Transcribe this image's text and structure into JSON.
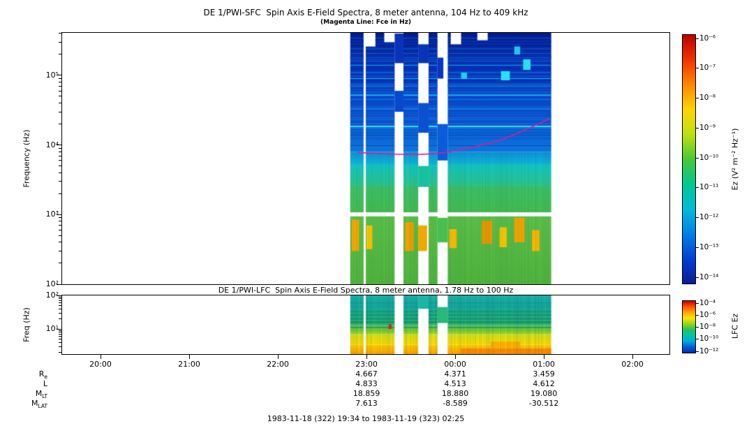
{
  "caption": "1983-11-18 (322) 19:34 to 1983-11-19 (323) 02:25",
  "xaxis": {
    "ticks": [
      {
        "t": 26,
        "label": "20:00"
      },
      {
        "t": 86,
        "label": "21:00"
      },
      {
        "t": 146,
        "label": "22:00"
      },
      {
        "t": 206,
        "label": "23:00"
      },
      {
        "t": 266,
        "label": "00:00"
      },
      {
        "t": 326,
        "label": "01:00"
      },
      {
        "t": 386,
        "label": "02:00"
      }
    ]
  },
  "ephemeris": {
    "column_times_min": [
      206,
      266,
      326
    ],
    "rows": [
      {
        "label": "R",
        "sub": "e",
        "values": [
          "4.667",
          "4.371",
          "3.459"
        ]
      },
      {
        "label": "L",
        "sub": "",
        "values": [
          "4.833",
          "4.513",
          "4.612"
        ]
      },
      {
        "label": "M",
        "sub": "LT",
        "values": [
          "18.859",
          "18.880",
          "19.080"
        ]
      },
      {
        "label": "M",
        "sub": "LAT",
        "values": [
          "7.613",
          "-8.589",
          "-30.512"
        ]
      }
    ]
  },
  "chart_data": [
    {
      "type": "heatmap",
      "title": "DE 1/PWI-SFC  Spin Axis E-Field Spectra, 8 meter antenna, 104 Hz to 409 kHz",
      "subtitle": "(Magenta Line: Fce in Hz)",
      "ylabel": "Frequency (Hz)",
      "ylim_hz": [
        100,
        409000
      ],
      "yticks": [
        {
          "log": 5,
          "label": "10⁵"
        },
        {
          "log": 4,
          "label": "10⁴"
        },
        {
          "log": 3,
          "label": "10³"
        },
        {
          "log": 2,
          "label": "10²"
        }
      ],
      "time_range_min": [
        0,
        411
      ],
      "data_segments_min": [
        [
          195,
          204
        ],
        [
          205.5,
          225
        ],
        [
          231,
          241
        ],
        [
          248,
          254
        ],
        [
          261,
          331
        ]
      ],
      "freq_bands": [
        {
          "f": [
            100,
            950
          ],
          "colors": [
            "#52b43c",
            "#5cc04a"
          ]
        },
        {
          "f": [
            1080,
            2600
          ],
          "colors": [
            "#46bc50",
            "#3cc06a"
          ]
        },
        {
          "f": [
            2600,
            5200
          ],
          "colors": [
            "#2cc48c",
            "#12c6c2"
          ]
        },
        {
          "f": [
            5200,
            8000
          ],
          "colors": [
            "#10b8d8",
            "#0c90dc"
          ]
        },
        {
          "f": [
            8000,
            20000
          ],
          "colors": [
            "#0c74dc",
            "#0a5cd4"
          ]
        },
        {
          "f": [
            20000,
            52000
          ],
          "colors": [
            "#0a54d0",
            "#0846c8"
          ]
        },
        {
          "f": [
            52000,
            200000
          ],
          "colors": [
            "#0642c4",
            "#042eb2"
          ]
        },
        {
          "f": [
            200000,
            409000
          ],
          "colors": [
            "#042aa8",
            "#021c8e"
          ]
        }
      ],
      "h_texture": {
        "seed": 7,
        "count": 70,
        "f": [
          9000,
          400000
        ],
        "colors": [
          "#1e8ae8",
          "#04249c"
        ]
      },
      "stripes": [
        {
          "f": 18500,
          "color": "#2ee4ea",
          "w": 2
        },
        {
          "f": 25000,
          "color": "#1476e8",
          "w": 1
        },
        {
          "f": 33000,
          "color": "#18a0ec",
          "w": 1
        },
        {
          "f": 52000,
          "color": "#14b4ec",
          "w": 2
        },
        {
          "f": 70000,
          "color": "#0e66d8",
          "w": 2
        },
        {
          "f": 90000,
          "color": "#18c0f0",
          "w": 1
        },
        {
          "f": 110000,
          "color": "#0e5cd0",
          "w": 2
        },
        {
          "f": 140000,
          "color": "#14a0e8",
          "w": 1
        },
        {
          "f": 180000,
          "color": "#0c48c4",
          "w": 2
        },
        {
          "f": 240000,
          "color": "#1060d0",
          "w": 1
        },
        {
          "f": 310000,
          "color": "#0c3cb8",
          "w": 1
        }
      ],
      "patches": [
        {
          "t": [
            196,
            201
          ],
          "f": [
            300,
            850
          ],
          "color": "#f4a800"
        },
        {
          "t": [
            206,
            210
          ],
          "f": [
            320,
            700
          ],
          "color": "#ffc400"
        },
        {
          "t": [
            232,
            238
          ],
          "f": [
            300,
            780
          ],
          "color": "#f0a000"
        },
        {
          "t": [
            241,
            247
          ],
          "f": [
            300,
            700
          ],
          "color": "#f0a800"
        },
        {
          "t": [
            262,
            267
          ],
          "f": [
            330,
            620
          ],
          "color": "#ffbc00"
        },
        {
          "t": [
            284,
            291
          ],
          "f": [
            380,
            820
          ],
          "color": "#ec9800"
        },
        {
          "t": [
            296,
            301
          ],
          "f": [
            340,
            660
          ],
          "color": "#ffc800"
        },
        {
          "t": [
            306,
            313
          ],
          "f": [
            400,
            900
          ],
          "color": "#f2a400"
        },
        {
          "t": [
            318,
            323
          ],
          "f": [
            300,
            600
          ],
          "color": "#ffb400"
        },
        {
          "t": [
            297,
            303
          ],
          "f": [
            85000,
            115000
          ],
          "color": "#28e0f0"
        },
        {
          "t": [
            312,
            317
          ],
          "f": [
            120000,
            170000
          ],
          "color": "#28e0f0"
        },
        {
          "t": [
            306,
            310
          ],
          "f": [
            200000,
            260000
          ],
          "color": "#20c8f0"
        },
        {
          "t": [
            270,
            274
          ],
          "f": [
            90000,
            110000
          ],
          "color": "#20d0f0"
        }
      ],
      "gap_blocks": [
        {
          "t": [
            225,
            231
          ],
          "f": [
            150000,
            400000
          ],
          "color": "#0834b8"
        },
        {
          "t": [
            225,
            231
          ],
          "f": [
            30000,
            60000
          ],
          "color": "#0848cc"
        },
        {
          "t": [
            241,
            248
          ],
          "f": [
            150000,
            280000
          ],
          "color": "#0834b8"
        },
        {
          "t": [
            241,
            248
          ],
          "f": [
            15000,
            40000
          ],
          "color": "#0a50d0"
        },
        {
          "t": [
            254,
            261
          ],
          "f": [
            6000,
            20000
          ],
          "color": "#0a5cd8"
        },
        {
          "t": [
            254,
            258
          ],
          "f": [
            90000,
            180000
          ],
          "color": "#0838c0"
        },
        {
          "t": [
            241,
            248
          ],
          "f": [
            2500,
            5000
          ],
          "color": "#18c0a0"
        },
        {
          "t": [
            254,
            261
          ],
          "f": [
            400,
            900
          ],
          "color": "#48c050"
        }
      ],
      "v_texture": {
        "seed": 3,
        "f": [
          100,
          8000
        ],
        "rgb": "0,90,60",
        "alpha": 0.16
      },
      "white_blocks": [
        {
          "t": [
            205.5,
            212
          ],
          "f": [
            260000,
            409000
          ]
        },
        {
          "t": [
            218,
            225
          ],
          "f": [
            300000,
            409000
          ]
        },
        {
          "t": [
            263,
            270
          ],
          "f": [
            280000,
            409000
          ]
        },
        {
          "t": [
            281,
            288
          ],
          "f": [
            320000,
            409000
          ]
        }
      ],
      "white_band_hz": [
        950,
        1080
      ],
      "fce_line": {
        "color": "#e0189c",
        "points": [
          [
            200,
            7800
          ],
          [
            210,
            7600
          ],
          [
            225,
            7400
          ],
          [
            240,
            7300
          ],
          [
            252,
            7500
          ],
          [
            262,
            8000
          ],
          [
            272,
            8800
          ],
          [
            282,
            9800
          ],
          [
            292,
            11000
          ],
          [
            302,
            13000
          ],
          [
            312,
            16000
          ],
          [
            322,
            20000
          ],
          [
            330,
            24000
          ]
        ]
      },
      "colorbar": {
        "label": "Ez (V² m⁻² Hz⁻¹)",
        "ticks": [
          "10⁻⁶",
          "10⁻⁷",
          "10⁻⁸",
          "10⁻⁹",
          "10⁻¹⁰",
          "10⁻¹¹",
          "10⁻¹²",
          "10⁻¹³",
          "10⁻¹⁴"
        ],
        "stops": [
          "#bc0000",
          "#f03400",
          "#ff8800",
          "#ffd400",
          "#c0e010",
          "#48c838",
          "#00c890",
          "#00bcd8",
          "#0080e8",
          "#0040d4",
          "#0c1c98"
        ]
      }
    },
    {
      "type": "heatmap",
      "title": "DE 1/PWI-LFC  Spin Axis E-Field Spectra, 8 meter antenna, 1.78 Hz to 100 Hz",
      "ylabel": "Freq (Hz)",
      "ylim_hz": [
        1.78,
        100
      ],
      "yticks": [
        {
          "log": 2,
          "label": "10²"
        },
        {
          "log": 1,
          "label": "10¹"
        }
      ],
      "time_range_min": [
        0,
        411
      ],
      "data_segments_min": [
        [
          195,
          204
        ],
        [
          205.5,
          225
        ],
        [
          231,
          241
        ],
        [
          248,
          254
        ],
        [
          261,
          331
        ]
      ],
      "freq_bands": [
        {
          "f": [
            1.78,
            3.4
          ],
          "colors": [
            "#ffa400",
            "#ffd400"
          ]
        },
        {
          "f": [
            3.4,
            7
          ],
          "colors": [
            "#ffdc00",
            "#d4e414"
          ]
        },
        {
          "f": [
            7,
            13
          ],
          "colors": [
            "#a4d820",
            "#48c458"
          ]
        },
        {
          "f": [
            13,
            40
          ],
          "colors": [
            "#28b468",
            "#18ac8c"
          ]
        },
        {
          "f": [
            40,
            100
          ],
          "colors": [
            "#12a898",
            "#1cb4a4"
          ]
        }
      ],
      "stripes": [
        {
          "f": 9,
          "color": "#70c828",
          "w": 1
        },
        {
          "f": 11,
          "color": "#128060",
          "w": 1
        },
        {
          "f": 16,
          "color": "#0c7868",
          "w": 1
        },
        {
          "f": 20,
          "color": "#0a8078",
          "w": 1
        },
        {
          "f": 26,
          "color": "#0c8880",
          "w": 1
        },
        {
          "f": 33,
          "color": "#0e9088",
          "w": 1
        },
        {
          "f": 60,
          "color": "#129890",
          "w": 1
        }
      ],
      "patches": [
        {
          "t": [
            221,
            223
          ],
          "f": [
            10,
            14
          ],
          "color": "#e02818"
        },
        {
          "t": [
            270,
            331
          ],
          "f": [
            1.78,
            2.6
          ],
          "color": "#ff8c00"
        },
        {
          "t": [
            290,
            310
          ],
          "f": [
            2.6,
            4.2
          ],
          "color": "#ffb400"
        }
      ],
      "gap_blocks": [
        {
          "t": [
            241,
            248
          ],
          "f": [
            40,
            100
          ],
          "color": "#1cb4a4"
        },
        {
          "t": [
            254,
            261
          ],
          "f": [
            15,
            45
          ],
          "color": "#28b878"
        }
      ],
      "v_texture": {
        "seed": 11,
        "f": [
          1.78,
          100
        ],
        "rgb": "10,40,110",
        "alpha": 0.22
      },
      "colorbar": {
        "label": "LFC Ez",
        "ticks": [
          "10⁻⁴",
          "10⁻⁶",
          "10⁻⁸",
          "10⁻¹⁰",
          "10⁻¹²"
        ],
        "stops": [
          "#c00000",
          "#ff5000",
          "#ffa800",
          "#ffe400",
          "#90d818",
          "#28c060",
          "#00c4a8",
          "#00a8e0",
          "#0060d8",
          "#0828b0"
        ]
      }
    }
  ]
}
